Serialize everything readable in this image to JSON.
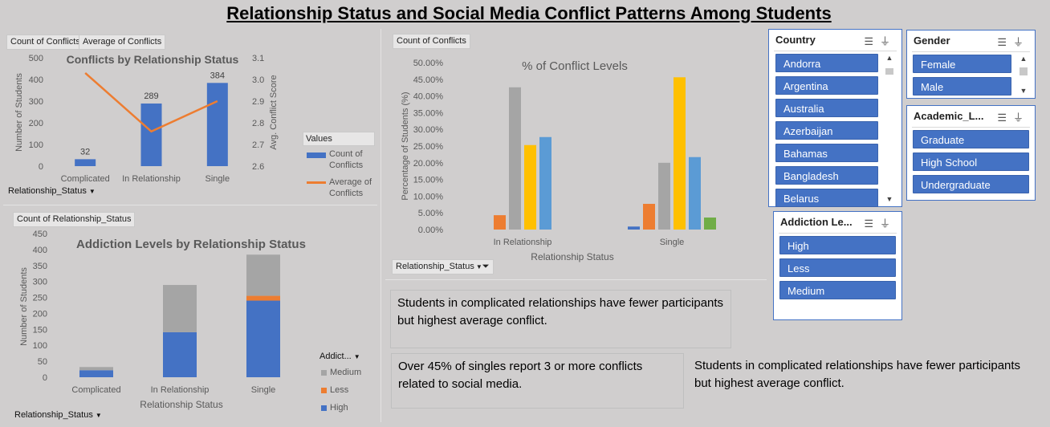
{
  "title": "Relationship Status and Social Media Conflict Patterns Among Students",
  "chart1": {
    "field_buttons": [
      "Count of Conflicts",
      "Average of Conflicts"
    ],
    "title": "Conflicts by Relationship Status",
    "ylabel": "Number of Students",
    "y2label": "Avg. Conflict Score",
    "y_ticks": [
      "0",
      "100",
      "200",
      "300",
      "400",
      "500"
    ],
    "y2_ticks": [
      "2.6",
      "2.7",
      "2.8",
      "2.9",
      "3.0",
      "3.1"
    ],
    "categories": [
      "Complicated",
      "In Relationship",
      "Single"
    ],
    "data_labels": [
      "32",
      "289",
      "384"
    ],
    "axis_field": "Relationship_Status",
    "legend_title": "Values",
    "legend": [
      "Count of Conflicts",
      "Average of Conflicts"
    ],
    "colors": {
      "bar": "#4472c4",
      "line": "#ed7d31"
    }
  },
  "chart2": {
    "field_button": "Count of Conflicts",
    "title": "% of Conflict Levels",
    "ylabel": "Percentage of Students (%)",
    "xlabel": "Relationship Status",
    "y_ticks": [
      "0.00%",
      "5.00%",
      "10.00%",
      "15.00%",
      "20.00%",
      "25.00%",
      "30.00%",
      "35.00%",
      "40.00%",
      "45.00%",
      "50.00%"
    ],
    "categories": [
      "In Relationship",
      "Single"
    ],
    "axis_field": "Relationship_Status",
    "colors": [
      "#4472c4",
      "#ed7d31",
      "#a5a5a5",
      "#ffc000",
      "#5b9bd5",
      "#70ad47"
    ]
  },
  "chart3": {
    "field_button": "Count of Relationship_Status",
    "title": "Addiction Levels by Relationship Status",
    "ylabel": "Number of Students",
    "xlabel": "Relationship Status",
    "y_ticks": [
      "0",
      "50",
      "100",
      "150",
      "200",
      "250",
      "300",
      "350",
      "400",
      "450"
    ],
    "categories": [
      "Complicated",
      "In Relationship",
      "Single"
    ],
    "axis_field": "Relationship_Status",
    "legend_field": "Addict...",
    "legend": [
      "Medium",
      "Less",
      "High"
    ],
    "colors": {
      "High": "#4472c4",
      "Less": "#ed7d31",
      "Medium": "#a5a5a5"
    }
  },
  "chart_data": [
    {
      "type": "bar",
      "title": "Conflicts by Relationship Status",
      "categories": [
        "Complicated",
        "In Relationship",
        "Single"
      ],
      "series": [
        {
          "name": "Count of Conflicts",
          "values": [
            32,
            289,
            384
          ],
          "axis": "primary"
        },
        {
          "name": "Average of Conflicts",
          "type": "line",
          "values": [
            3.03,
            2.76,
            2.9
          ],
          "axis": "secondary"
        }
      ],
      "ylabel": "Number of Students",
      "y2label": "Avg. Conflict Score",
      "ylim": [
        0,
        500
      ],
      "y2lim": [
        2.6,
        3.1
      ],
      "legend": "right"
    },
    {
      "type": "bar",
      "title": "% of Conflict Levels",
      "categories": [
        "In Relationship",
        "Single"
      ],
      "series": [
        {
          "values": [
            0,
            0.9
          ]
        },
        {
          "values": [
            4.3,
            7.7
          ]
        },
        {
          "values": [
            42.6,
            20.0
          ]
        },
        {
          "values": [
            25.3,
            45.6
          ]
        },
        {
          "values": [
            27.7,
            21.7
          ]
        },
        {
          "values": [
            0,
            3.6
          ]
        }
      ],
      "xlabel": "Relationship Status",
      "ylabel": "Percentage of Students (%)",
      "ylim": [
        0,
        50
      ]
    },
    {
      "type": "bar",
      "stacked": true,
      "title": "Addiction Levels by Relationship Status",
      "categories": [
        "Complicated",
        "In Relationship",
        "Single"
      ],
      "series": [
        {
          "name": "High",
          "values": [
            22,
            141,
            240
          ]
        },
        {
          "name": "Less",
          "values": [
            0,
            0,
            15
          ]
        },
        {
          "name": "Medium",
          "values": [
            10,
            148,
            129
          ]
        }
      ],
      "xlabel": "Relationship Status",
      "ylabel": "Number of Students",
      "ylim": [
        0,
        450
      ],
      "legend": "right"
    }
  ],
  "slicers": {
    "country": {
      "header": "Country",
      "items": [
        "Andorra",
        "Argentina",
        "Australia",
        "Azerbaijan",
        "Bahamas",
        "Bangladesh",
        "Belarus"
      ]
    },
    "gender": {
      "header": "Gender",
      "items": [
        "Female",
        "Male"
      ]
    },
    "academic": {
      "header": "Academic_L...",
      "items": [
        "Graduate",
        "High School",
        "Undergraduate"
      ]
    },
    "addiction": {
      "header": "Addiction Le...",
      "items": [
        "High",
        "Less",
        "Medium"
      ]
    }
  },
  "insights": [
    "Students in complicated relationships have fewer participants but highest average conflict.",
    "Over 45% of singles report 3 or more conflicts related to social media.",
    "Students in complicated relationships have fewer participants but highest average conflict."
  ]
}
